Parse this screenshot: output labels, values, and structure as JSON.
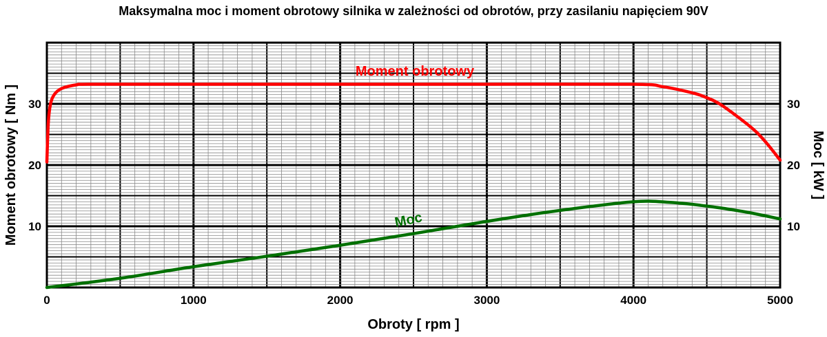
{
  "chart_data": {
    "type": "line",
    "title": "Maksymalna moc i moment obrotowy silnika w zależności od obrotów, przy zasilaniu napięciem 90V",
    "xlabel": "Obroty [ rpm ]",
    "ylabel": "Moment obrotowy [ Nm ]",
    "y2label": "Moc [ kW ]",
    "xlim": [
      0,
      5000
    ],
    "ylim": [
      0,
      40
    ],
    "y2lim": [
      0,
      40
    ],
    "grid": true,
    "x_ticks": [
      "0",
      "1000",
      "2000",
      "3000",
      "4000",
      "5000"
    ],
    "y_ticks": [
      "10",
      "20",
      "30"
    ],
    "y2_ticks": [
      "10",
      "20",
      "30"
    ],
    "series": [
      {
        "name": "Moment obrotowy",
        "color": "#ff0000",
        "axis": "left",
        "points": [
          [
            0,
            20.5
          ],
          [
            10,
            27
          ],
          [
            25,
            30
          ],
          [
            50,
            31.5
          ],
          [
            100,
            32.5
          ],
          [
            200,
            33.1
          ],
          [
            300,
            33.2
          ],
          [
            1000,
            33.2
          ],
          [
            2000,
            33.2
          ],
          [
            3000,
            33.2
          ],
          [
            4000,
            33.2
          ],
          [
            4200,
            32.8
          ],
          [
            4400,
            31.8
          ],
          [
            4500,
            31.0
          ],
          [
            4600,
            29.8
          ],
          [
            4800,
            26.2
          ],
          [
            4900,
            23.8
          ],
          [
            5000,
            20.8
          ]
        ]
      },
      {
        "name": "Moc",
        "color": "#007000",
        "axis": "right",
        "points": [
          [
            0,
            0
          ],
          [
            500,
            1.5
          ],
          [
            1000,
            3.4
          ],
          [
            1500,
            5.1
          ],
          [
            2000,
            6.9
          ],
          [
            2500,
            8.8
          ],
          [
            3000,
            10.8
          ],
          [
            3500,
            12.6
          ],
          [
            4000,
            14.0
          ],
          [
            4250,
            13.9
          ],
          [
            4500,
            13.3
          ],
          [
            4750,
            12.4
          ],
          [
            5000,
            11.2
          ]
        ]
      }
    ]
  }
}
